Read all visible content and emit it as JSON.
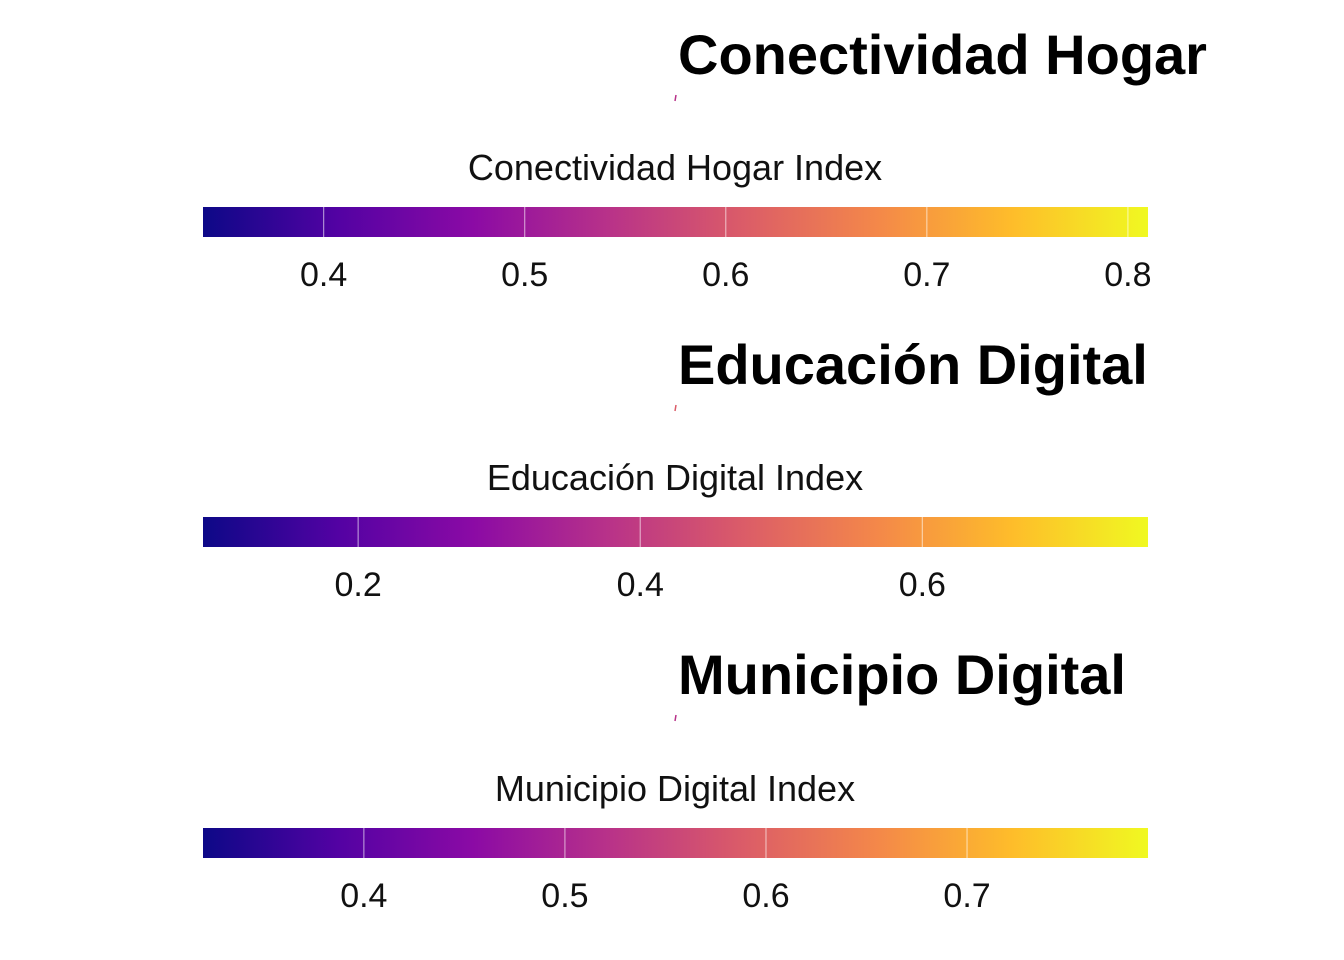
{
  "chart_data": [
    {
      "type": "colorbar",
      "title": "Conectividad Hogar",
      "legend_title": "Conectividad Hogar Index",
      "colormap": "plasma",
      "range": [
        0.34,
        0.81
      ],
      "ticks": [
        0.4,
        0.5,
        0.6,
        0.7,
        0.8
      ],
      "tick_labels": [
        "0.4",
        "0.5",
        "0.6",
        "0.7",
        "0.8"
      ]
    },
    {
      "type": "colorbar",
      "title": "Educación Digital",
      "legend_title": "Educación Digital Index",
      "colormap": "plasma",
      "range": [
        0.09,
        0.76
      ],
      "ticks": [
        0.2,
        0.4,
        0.6
      ],
      "tick_labels": [
        "0.2",
        "0.4",
        "0.6"
      ]
    },
    {
      "type": "colorbar",
      "title": "Municipio Digital",
      "legend_title": "Municipio Digital Index",
      "colormap": "plasma",
      "range": [
        0.32,
        0.79
      ],
      "ticks": [
        0.4,
        0.5,
        0.6,
        0.7
      ],
      "tick_labels": [
        "0.4",
        "0.5",
        "0.6",
        "0.7"
      ]
    }
  ],
  "colors": {
    "plasma": [
      "#0d0887",
      "#5302a3",
      "#8b0aa5",
      "#b83289",
      "#db5c68",
      "#f48849",
      "#febd2a",
      "#f0f921"
    ]
  }
}
